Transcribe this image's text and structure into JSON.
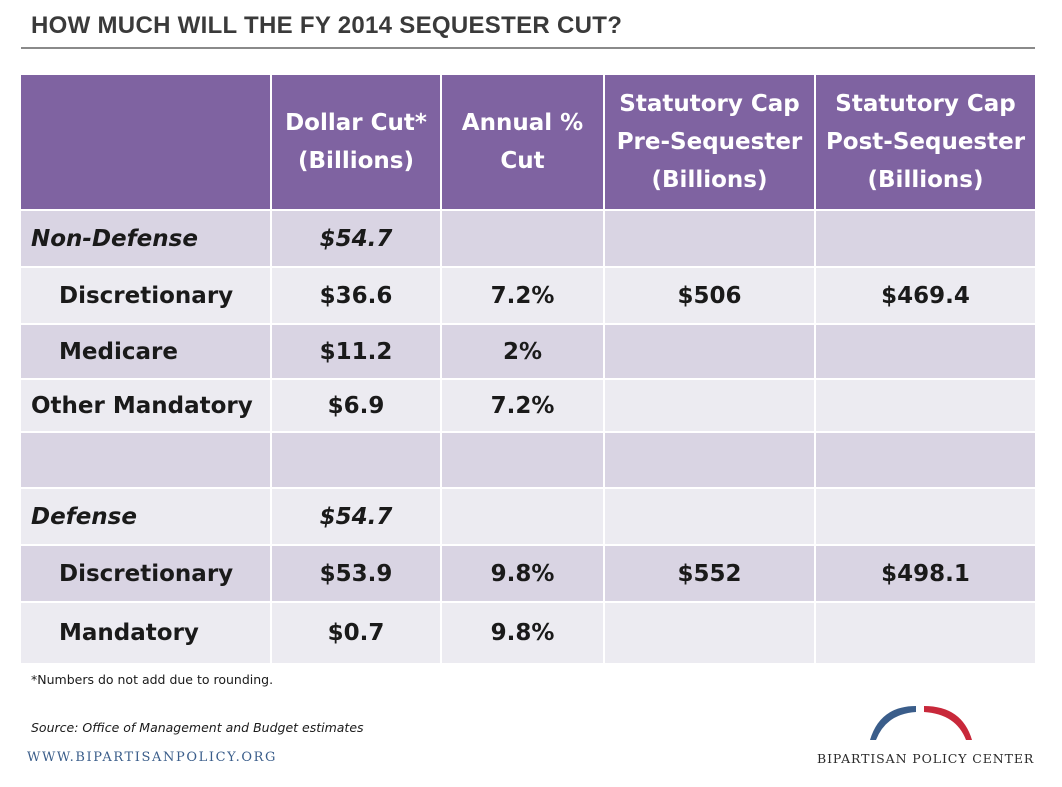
{
  "title": "HOW MUCH WILL THE FY 2014 SEQUESTER CUT?",
  "table": {
    "headers": [
      "",
      "Dollar Cut* (Billions)",
      "Annual % Cut",
      "Statutory Cap Pre-Sequester (Billions)",
      "Statutory Cap Post-Sequester (Billions)"
    ],
    "header_lines": [
      [],
      [
        "Dollar Cut*",
        "(Billions)"
      ],
      [
        "Annual %",
        "Cut"
      ],
      [
        "Statutory Cap",
        "Pre-Sequester",
        "(Billions)"
      ],
      [
        "Statutory Cap",
        "Post-Sequester",
        "(Billions)"
      ]
    ],
    "rows": [
      [
        "Non-Defense",
        "$54.7",
        "",
        "",
        ""
      ],
      [
        "Discretionary",
        "$36.6",
        "7.2%",
        "$506",
        "$469.4"
      ],
      [
        "Medicare",
        "$11.2",
        "2%",
        "",
        ""
      ],
      [
        "Other Mandatory",
        "$6.9",
        "7.2%",
        "",
        ""
      ],
      [
        "",
        "",
        "",
        "",
        ""
      ],
      [
        "Defense",
        "$54.7",
        "",
        "",
        ""
      ],
      [
        "Discretionary",
        "$53.9",
        "9.8%",
        "$552",
        "$498.1"
      ],
      [
        "Mandatory",
        "$0.7",
        "9.8%",
        "",
        ""
      ]
    ]
  },
  "footnote": "*Numbers do not add due to rounding.",
  "source": "Source: Office of Management and Budget estimates",
  "website": "WWW.BIPARTISANPOLICY.ORG",
  "organization": "BIPARTISAN POLICY CENTER",
  "colors": {
    "header": "#7f63a1",
    "row_dark": "#d9d4e3",
    "row_light": "#ecebf1",
    "logo_blue": "#3a5d8a",
    "logo_red": "#c8283a"
  }
}
